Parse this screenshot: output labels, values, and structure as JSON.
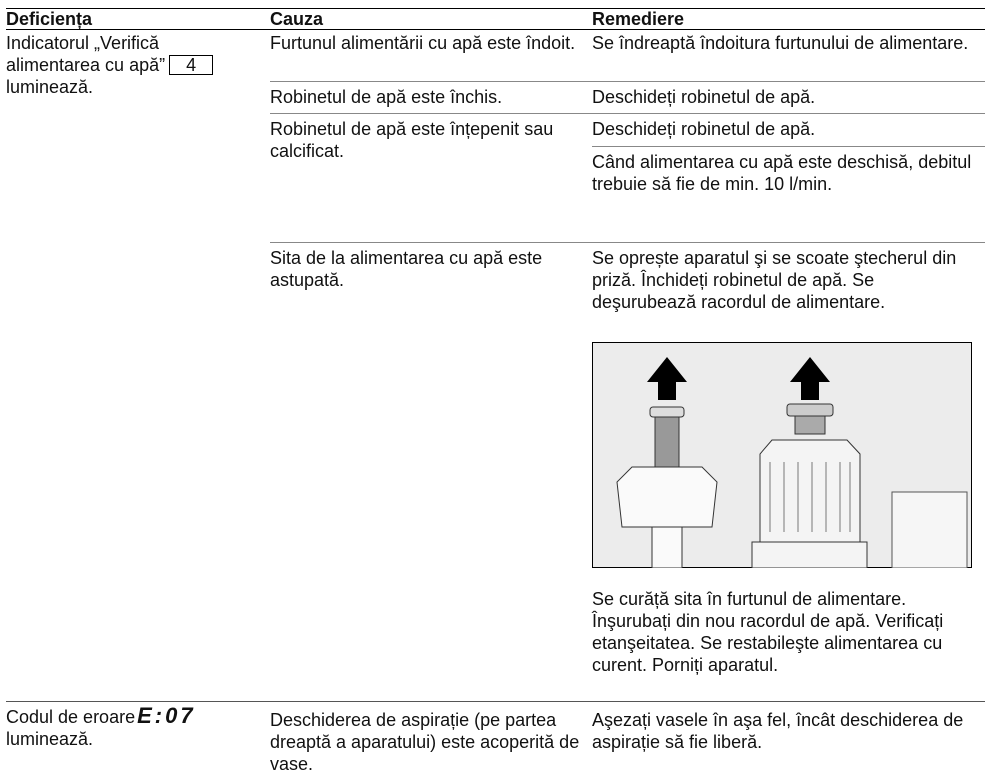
{
  "header": {
    "columns": [
      "Deficiența",
      "Cauza",
      "Remediere"
    ]
  },
  "rows": [
    {
      "deficiency": [
        "Indicatorul „Verifică alimentarea cu apă”",
        "4",
        "luminează."
      ],
      "issues": [
        {
          "cause": "Furtunul alimentării cu apă este îndoit.",
          "remedies": [
            "Se îndreaptă îndoitura furtunului de alimentare."
          ]
        },
        {
          "cause": "Robinetul de apă este închis.",
          "remedies": [
            "Deschideți robinetul de apă."
          ]
        },
        {
          "cause": "Robinetul de apă este înțepenit sau calcificat.",
          "remedies": [
            "Deschideți robinetul de apă.",
            "Când alimentarea cu apă este deschisă, debitul trebuie să fie de min. 10 l/min."
          ]
        },
        {
          "cause": "Sita de la alimentarea cu apă este astupată.",
          "remedies": [
            "Se oprește aparatul şi se scoate ştecherul din priză. Închideți robinetul de apă. Se deşurubează racordul de alimentare.",
            "Se curăță sita în furtunul de alimentare. Înşurubați din nou racordul de apă. Verificați etanşeitatea. Se restabileşte alimentarea cu curent. Porniți aparatul."
          ]
        }
      ]
    },
    {
      "deficiency": [
        "Codul de eroare",
        "E:07",
        "luminează."
      ],
      "issues": [
        {
          "cause": "Deschiderea de aspirație (pe partea dreaptă a aparatului) este acoperită de vase.",
          "remedies": [
            "Aşezați vasele în aşa fel, încât deschiderea de aspirație să fie liberă."
          ]
        }
      ]
    }
  ]
}
